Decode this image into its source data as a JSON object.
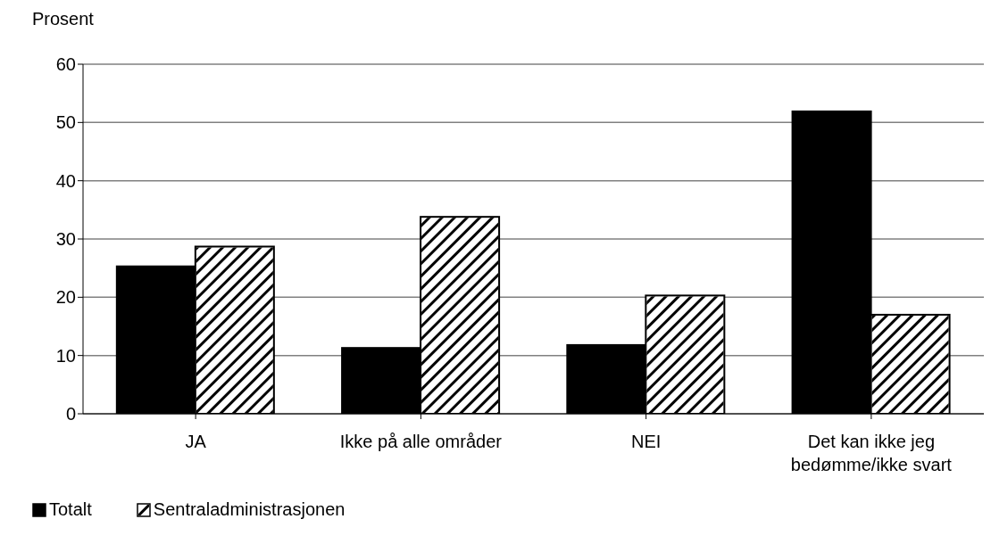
{
  "chart_data": {
    "type": "bar",
    "ylabel": "Prosent",
    "categories": [
      "JA",
      "Ikke på alle områder",
      "NEI",
      "Det kan ikke jeg bedømme/ikke svart"
    ],
    "series": [
      {
        "name": "Totalt",
        "color": "#000000",
        "values": [
          25.3,
          11.3,
          11.8,
          51.9
        ]
      },
      {
        "name": "Sentraladministrasjonen",
        "color": "#ffffff",
        "values": [
          28.7,
          33.8,
          20.3,
          17.0
        ]
      }
    ],
    "ylim": [
      0,
      60
    ],
    "yticks": [
      0,
      10,
      20,
      30,
      40,
      50,
      60
    ],
    "grid": "y",
    "legend": "bottom left"
  }
}
